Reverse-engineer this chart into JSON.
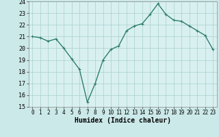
{
  "x": [
    0,
    1,
    2,
    3,
    4,
    5,
    6,
    7,
    8,
    9,
    10,
    11,
    12,
    13,
    14,
    15,
    16,
    17,
    18,
    19,
    20,
    21,
    22,
    23
  ],
  "y": [
    21.0,
    20.9,
    20.6,
    20.8,
    20.0,
    19.1,
    18.2,
    15.4,
    17.0,
    19.0,
    19.9,
    20.2,
    21.5,
    21.9,
    22.1,
    22.9,
    23.8,
    22.9,
    22.4,
    22.3,
    21.9,
    21.5,
    21.1,
    19.9
  ],
  "line_color": "#2e7d6e",
  "marker": "+",
  "marker_size": 3,
  "bg_color": "#cce9e9",
  "plot_bg_color": "#d9f0f0",
  "grid_color": "#a8cece",
  "xlabel": "Humidex (Indice chaleur)",
  "ylim": [
    15,
    24
  ],
  "xlim": [
    -0.5,
    23.5
  ],
  "yticks": [
    15,
    16,
    17,
    18,
    19,
    20,
    21,
    22,
    23,
    24
  ],
  "xticks": [
    0,
    1,
    2,
    3,
    4,
    5,
    6,
    7,
    8,
    9,
    10,
    11,
    12,
    13,
    14,
    15,
    16,
    17,
    18,
    19,
    20,
    21,
    22,
    23
  ],
  "xlabel_fontsize": 7,
  "tick_fontsize": 5.5,
  "ytick_fontsize": 6,
  "linewidth": 1.0,
  "markeredgewidth": 0.8
}
